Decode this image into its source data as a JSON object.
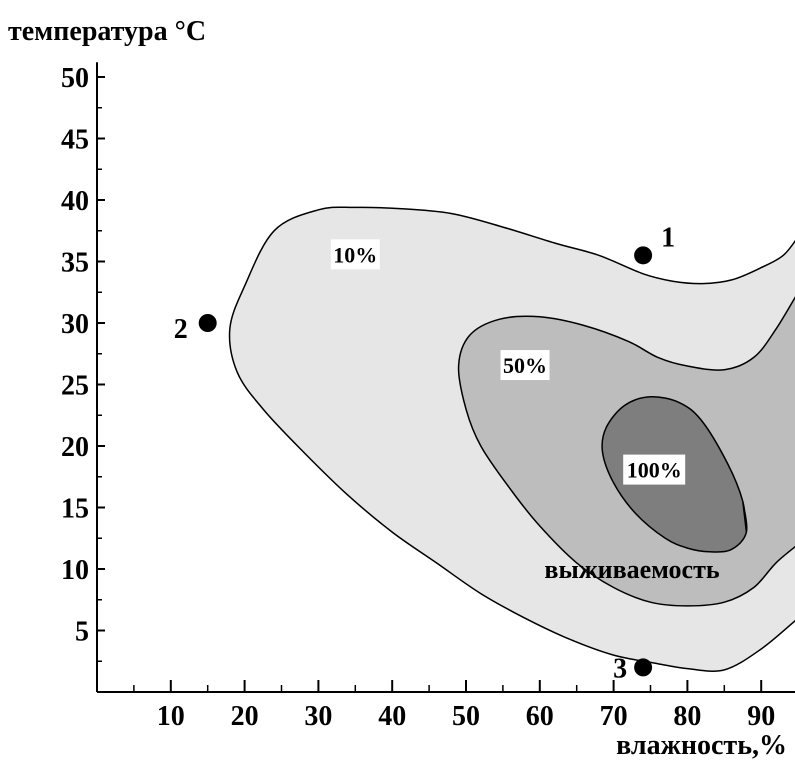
{
  "chart_data": {
    "type": "contour",
    "ylabel": "температура °C",
    "xlabel": "влажность,%",
    "xlim": [
      0,
      95
    ],
    "ylim": [
      0,
      52
    ],
    "x_ticks": [
      10,
      20,
      30,
      40,
      50,
      60,
      70,
      80,
      90
    ],
    "y_ticks": [
      5,
      10,
      15,
      20,
      25,
      30,
      35,
      40,
      45,
      50
    ],
    "annotation": "выживаемость",
    "colors": {
      "level_10": "#e6e6e6",
      "level_50": "#bdbdbd",
      "level_100": "#7e7e7e",
      "outline": "#000000",
      "label_bg": "#ffffff"
    },
    "regions": [
      {
        "label": "10%",
        "label_pos": [
          35,
          35.5
        ],
        "outline": [
          [
            95,
            37
          ],
          [
            93,
            35.5
          ],
          [
            90,
            34.5
          ],
          [
            86,
            33.5
          ],
          [
            82,
            33.2
          ],
          [
            78,
            33.4
          ],
          [
            74,
            34
          ],
          [
            68,
            35.5
          ],
          [
            62,
            36.5
          ],
          [
            55,
            37.8
          ],
          [
            48,
            38.9
          ],
          [
            41,
            39.3
          ],
          [
            35,
            39.4
          ],
          [
            30,
            39.2
          ],
          [
            24,
            37.5
          ],
          [
            20,
            33
          ],
          [
            18,
            29.5
          ],
          [
            19,
            26
          ],
          [
            22.5,
            23
          ],
          [
            28,
            19.5
          ],
          [
            34,
            16
          ],
          [
            40,
            13
          ],
          [
            46,
            10.5
          ],
          [
            52,
            8
          ],
          [
            58,
            6
          ],
          [
            64,
            4.3
          ],
          [
            70,
            3
          ],
          [
            76,
            2.3
          ],
          [
            80,
            1.9
          ],
          [
            85,
            1.8
          ],
          [
            90,
            3.5
          ],
          [
            95,
            6
          ]
        ]
      },
      {
        "label": "50%",
        "label_pos": [
          58,
          26.5
        ],
        "outline": [
          [
            95,
            32.5
          ],
          [
            92,
            29.5
          ],
          [
            89,
            27.2
          ],
          [
            85,
            26.2
          ],
          [
            80,
            26.5
          ],
          [
            76,
            27.2
          ],
          [
            72,
            28.5
          ],
          [
            66,
            29.8
          ],
          [
            60,
            30.5
          ],
          [
            54.5,
            30.3
          ],
          [
            50.5,
            29
          ],
          [
            49,
            26.5
          ],
          [
            50,
            23
          ],
          [
            52,
            20
          ],
          [
            56,
            16.5
          ],
          [
            60,
            13.5
          ],
          [
            65,
            10.5
          ],
          [
            70,
            8.5
          ],
          [
            75,
            7.3
          ],
          [
            80,
            7
          ],
          [
            85,
            7.3
          ],
          [
            89,
            8.5
          ],
          [
            92,
            10.5
          ],
          [
            95,
            12
          ]
        ]
      },
      {
        "label": "100%",
        "label_pos": [
          75.5,
          18
        ],
        "outline": [
          [
            88,
            13
          ],
          [
            87.5,
            15.5
          ],
          [
            85.5,
            18.5
          ],
          [
            82,
            22
          ],
          [
            79,
            23.5
          ],
          [
            75,
            24
          ],
          [
            71.5,
            23.3
          ],
          [
            69,
            21.5
          ],
          [
            68.5,
            19.5
          ],
          [
            70,
            17
          ],
          [
            73,
            14.5
          ],
          [
            77,
            12.5
          ],
          [
            80,
            11.7
          ],
          [
            83,
            11.4
          ],
          [
            86,
            11.6
          ]
        ]
      }
    ],
    "points": [
      {
        "label": "1",
        "x": 74,
        "y": 35.5
      },
      {
        "label": "2",
        "x": 15,
        "y": 30
      },
      {
        "label": "3",
        "x": 74,
        "y": 2
      }
    ]
  }
}
